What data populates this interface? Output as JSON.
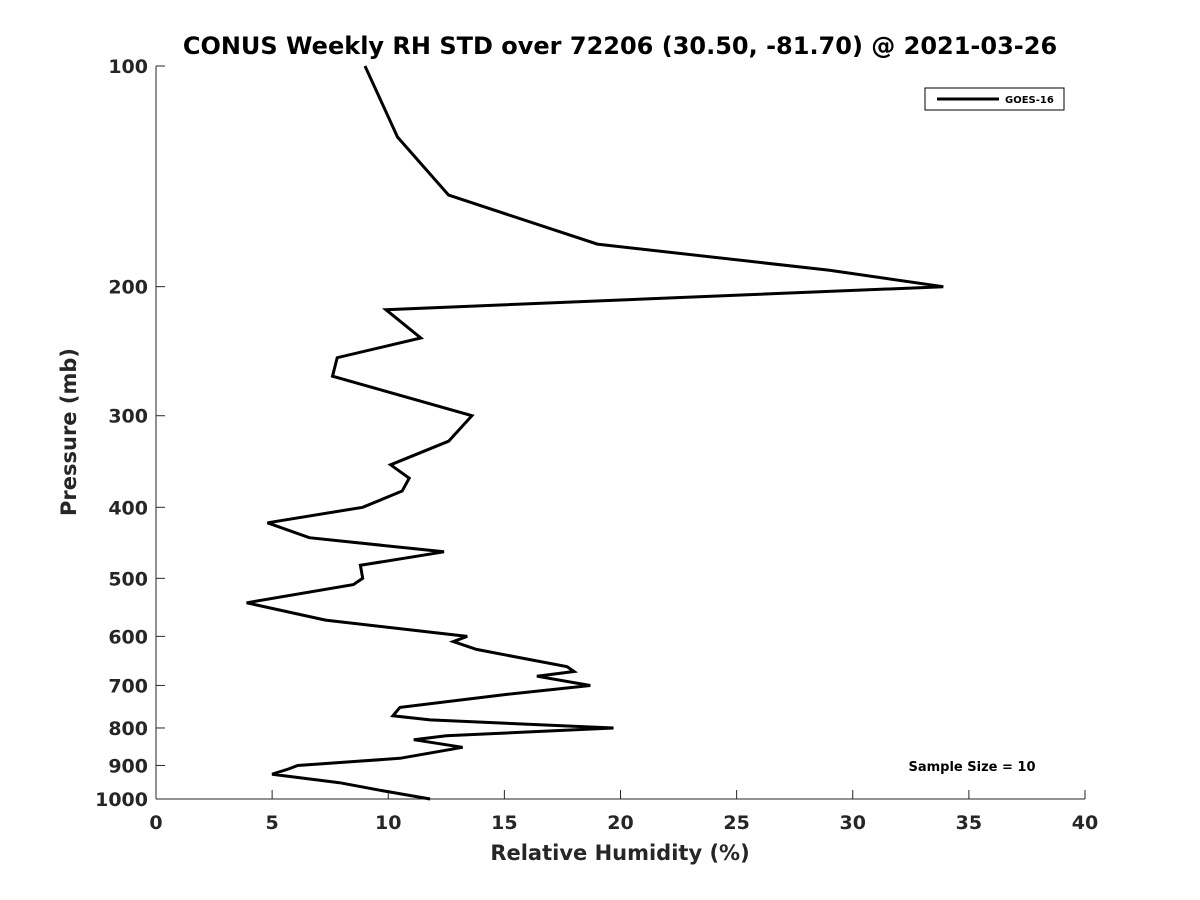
{
  "chart_data": {
    "type": "line",
    "title": "CONUS Weekly RH STD over 72206 (30.50, -81.70) @ 2021-03-26",
    "xlabel": "Relative Humidity (%)",
    "ylabel": "Pressure (mb)",
    "xlim": [
      0,
      40
    ],
    "ylim": [
      100,
      1000
    ],
    "y_scale": "log",
    "y_reversed": true,
    "x_ticks": [
      0,
      5,
      10,
      15,
      20,
      25,
      30,
      35,
      40
    ],
    "x_tick_labels": [
      "0",
      "5",
      "10",
      "15",
      "20",
      "25",
      "30",
      "35",
      "40"
    ],
    "y_ticks": [
      100,
      200,
      300,
      400,
      500,
      600,
      700,
      800,
      900,
      1000
    ],
    "y_tick_labels": [
      "100",
      "200",
      "300",
      "400",
      "500",
      "600",
      "700",
      "800",
      "900",
      "1000"
    ],
    "grid": false,
    "legend_position": "top-right",
    "annotation": "Sample Size = 10",
    "series": [
      {
        "name": "GOES-16",
        "color": "#000000",
        "points": [
          [
            9.0,
            100
          ],
          [
            10.4,
            125
          ],
          [
            12.6,
            150
          ],
          [
            19.0,
            175
          ],
          [
            29.0,
            190
          ],
          [
            33.9,
            200
          ],
          [
            9.9,
            215
          ],
          [
            11.4,
            235
          ],
          [
            7.8,
            250
          ],
          [
            7.6,
            265
          ],
          [
            13.6,
            300
          ],
          [
            12.6,
            325
          ],
          [
            10.1,
            350
          ],
          [
            10.9,
            365
          ],
          [
            10.6,
            380
          ],
          [
            8.9,
            400
          ],
          [
            4.8,
            420
          ],
          [
            6.6,
            440
          ],
          [
            12.4,
            460
          ],
          [
            8.8,
            480
          ],
          [
            8.9,
            500
          ],
          [
            8.5,
            510
          ],
          [
            3.9,
            540
          ],
          [
            7.3,
            570
          ],
          [
            13.4,
            600
          ],
          [
            12.8,
            610
          ],
          [
            13.8,
            625
          ],
          [
            17.7,
            660
          ],
          [
            18.0,
            670
          ],
          [
            16.4,
            680
          ],
          [
            18.7,
            700
          ],
          [
            15.1,
            720
          ],
          [
            10.5,
            750
          ],
          [
            10.2,
            770
          ],
          [
            11.8,
            780
          ],
          [
            19.7,
            800
          ],
          [
            12.5,
            820
          ],
          [
            11.1,
            830
          ],
          [
            13.2,
            850
          ],
          [
            10.5,
            880
          ],
          [
            6.1,
            900
          ],
          [
            5.7,
            910
          ],
          [
            5.0,
            925
          ],
          [
            7.9,
            950
          ],
          [
            9.8,
            975
          ],
          [
            11.8,
            1000
          ]
        ]
      }
    ]
  }
}
